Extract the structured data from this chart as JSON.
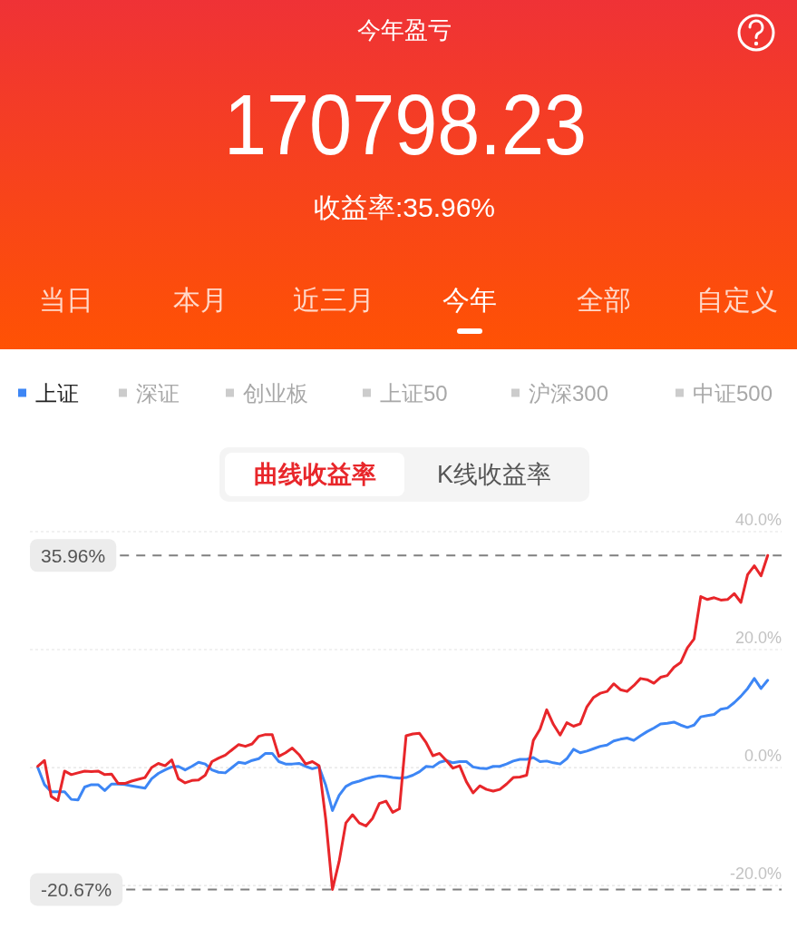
{
  "chart_data": {
    "type": "line",
    "title": "今年盈亏",
    "annotations": [
      "170798.23",
      "收益率:35.96%",
      "当日",
      "本月",
      "近三月",
      "今年",
      "全部",
      "自定义",
      "深证",
      "创业板",
      "上证50",
      "沪深300",
      "中证500",
      "曲线收益率",
      "K线收益率"
    ],
    "categories": [
      null,
      null,
      null,
      null,
      null,
      null,
      null,
      null,
      null,
      null,
      null,
      null,
      null,
      null,
      null,
      null,
      null,
      null,
      null,
      null,
      null,
      null,
      null,
      null,
      null,
      null,
      null,
      null,
      null,
      null,
      null,
      null,
      null,
      null,
      null,
      null,
      null,
      null,
      null,
      null,
      null,
      null,
      null,
      null,
      null,
      null,
      null,
      null,
      null,
      null,
      null,
      null,
      null,
      null,
      null,
      null,
      null,
      null,
      null,
      null,
      null,
      null,
      null,
      null,
      null,
      null,
      null,
      null,
      null,
      null,
      null,
      null,
      null,
      null,
      null,
      null,
      null,
      null,
      null,
      null,
      null,
      null,
      null,
      null,
      null,
      null,
      null,
      null,
      null,
      null,
      null,
      null,
      null,
      null,
      null,
      null,
      null,
      null,
      null,
      null,
      null,
      null,
      null,
      null,
      null,
      null,
      null,
      null,
      null,
      null
    ],
    "series": [
      {
        "name": "上证",
        "color": "#3d86f5",
        "values": [
          0.0,
          -2.9,
          -4.1,
          -4.1,
          -4.1,
          -5.4,
          -5.5,
          -3.3,
          -2.9,
          -2.9,
          -3.9,
          -2.8,
          -2.8,
          -2.9,
          -3.1,
          -3.3,
          -3.5,
          -1.9,
          -1.0,
          -0.4,
          0.1,
          0.2,
          -0.4,
          0.2,
          0.9,
          0.6,
          -0.4,
          -0.8,
          -0.9,
          0.0,
          0.9,
          0.7,
          1.2,
          1.5,
          2.4,
          2.4,
          1.0,
          0.6,
          0.6,
          0.7,
          0.2,
          -0.2,
          0.1,
          -3.0,
          -7.3,
          -4.7,
          -3.2,
          -2.6,
          -2.3,
          -1.9,
          -1.6,
          -1.4,
          -1.5,
          -1.7,
          -1.8,
          -1.7,
          -1.3,
          -0.7,
          0.2,
          0.1,
          0.9,
          1.2,
          0.8,
          1.0,
          1.0,
          0.1,
          -0.1,
          -0.2,
          0.2,
          0.2,
          0.6,
          1.1,
          1.4,
          1.4,
          1.7,
          1.0,
          1.1,
          0.8,
          0.6,
          1.5,
          3.1,
          2.5,
          2.8,
          3.2,
          3.6,
          3.8,
          4.5,
          4.8,
          5.0,
          4.6,
          5.4,
          6.1,
          6.7,
          7.4,
          7.5,
          7.7,
          7.2,
          6.8,
          7.2,
          8.6,
          8.8,
          9.0,
          9.9,
          10.1,
          11.0,
          12.1,
          13.4,
          15.1,
          13.4,
          14.8
        ]
      },
      {
        "color": "#e8262a",
        "values": [
          0.2,
          1.2,
          -4.9,
          -5.6,
          -0.6,
          -1.2,
          -0.9,
          -0.6,
          -0.7,
          -0.6,
          -1.2,
          -1.1,
          -2.7,
          -2.7,
          -2.3,
          -2.0,
          -1.7,
          0.0,
          0.7,
          0.3,
          1.3,
          -1.9,
          -2.6,
          -2.2,
          -2.1,
          -1.3,
          1.0,
          1.6,
          2.1,
          3.0,
          3.9,
          3.6,
          4.0,
          5.3,
          5.6,
          5.6,
          1.9,
          2.5,
          3.3,
          2.2,
          0.6,
          1.0,
          0.3,
          -8.8,
          -20.67,
          -15.9,
          -9.4,
          -8.0,
          -9.4,
          -9.9,
          -8.6,
          -6.1,
          -5.7,
          -7.6,
          -7.0,
          5.4,
          5.7,
          5.8,
          4.2,
          2.0,
          2.4,
          1.2,
          -0.1,
          0.3,
          -2.4,
          -4.3,
          -3.1,
          -3.7,
          -4.0,
          -3.7,
          -2.8,
          -1.7,
          -1.6,
          -1.3,
          4.6,
          6.5,
          9.8,
          7.3,
          5.5,
          7.6,
          7.0,
          7.4,
          10.3,
          11.9,
          12.6,
          12.9,
          14.2,
          13.2,
          12.9,
          13.9,
          15.1,
          14.9,
          14.3,
          15.3,
          15.6,
          17.0,
          17.8,
          20.3,
          21.8,
          29.0,
          28.5,
          28.8,
          28.4,
          28.5,
          29.5,
          28.0,
          32.7,
          34.2,
          32.5,
          35.96
        ]
      }
    ],
    "ylim": [
      -20.67,
      40
    ],
    "yticks": [
      {
        "value": 40,
        "label": "40.0%"
      },
      {
        "value": 20,
        "label": "20.0%"
      },
      {
        "value": 0,
        "label": "0.0%"
      },
      {
        "value": -20,
        "label": "-20.0%"
      }
    ],
    "tick_labels": "y",
    "grid": "y",
    "legend": "top",
    "ref_lines": [
      {
        "axis": "y",
        "value": 35.96,
        "label": "35.96%",
        "color": "#808080",
        "line_style": "dashed"
      },
      {
        "axis": "y",
        "value": -20.67,
        "label": "-20.67%",
        "color": "#808080",
        "line_style": "dashed"
      }
    ]
  }
}
